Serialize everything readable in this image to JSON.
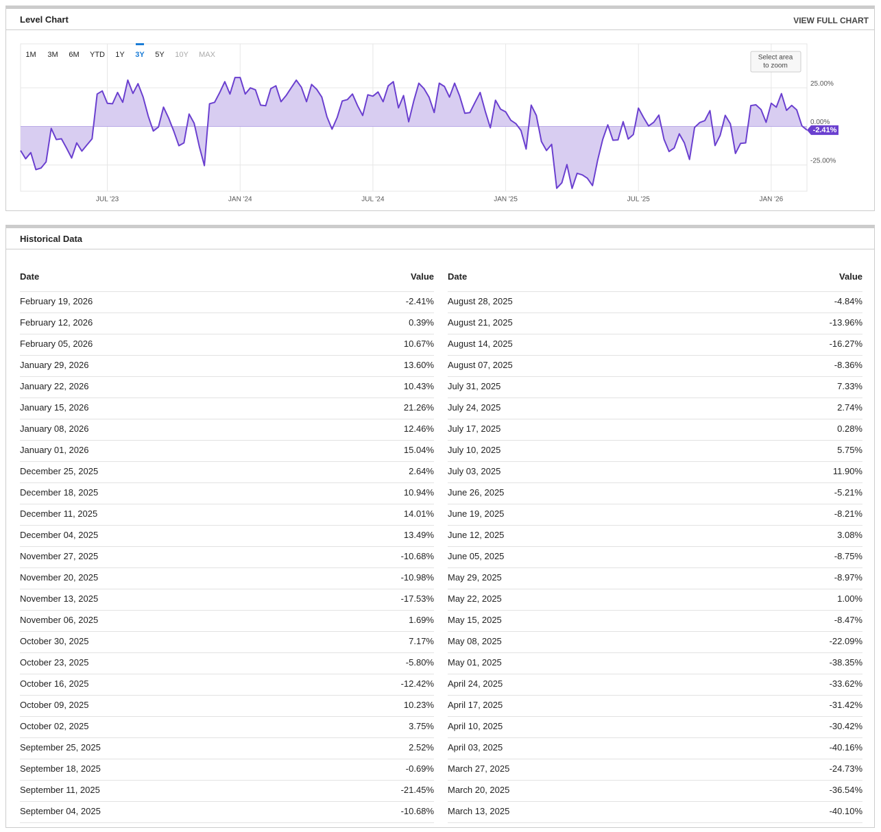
{
  "header": {
    "title": "Level Chart",
    "link": "VIEW FULL CHART"
  },
  "ranges": [
    "1M",
    "3M",
    "6M",
    "YTD",
    "1Y",
    "3Y",
    "5Y",
    "10Y",
    "MAX"
  ],
  "selected_range": "3Y",
  "disabled_ranges": [
    "10Y",
    "MAX"
  ],
  "zoom_hint": [
    "Select area",
    "to zoom"
  ],
  "chart_data": {
    "type": "area",
    "color": "#6a3fcf",
    "fill_color": "#d8cdf1",
    "categories": [
      null,
      null,
      null,
      null,
      null,
      null,
      null,
      null,
      null,
      null,
      null,
      null,
      null,
      null,
      null,
      null,
      null,
      "JUL '23",
      null,
      null,
      null,
      null,
      null,
      null,
      null,
      null,
      null,
      null,
      null,
      null,
      null,
      null,
      null,
      null,
      null,
      null,
      null,
      null,
      null,
      null,
      null,
      null,
      null,
      "JAN '24",
      null,
      null,
      null,
      null,
      null,
      null,
      null,
      null,
      null,
      null,
      null,
      null,
      null,
      null,
      null,
      null,
      null,
      null,
      null,
      null,
      null,
      null,
      null,
      null,
      null,
      "JUL '24",
      null,
      null,
      null,
      null,
      null,
      null,
      null,
      null,
      null,
      null,
      null,
      null,
      null,
      null,
      null,
      null,
      null,
      null,
      null,
      null,
      null,
      null,
      null,
      null,
      null,
      "JAN '25",
      null,
      null,
      null,
      null,
      null,
      null,
      null,
      null,
      null,
      null,
      null,
      null,
      null,
      null,
      null,
      null,
      null,
      null,
      null,
      null,
      null,
      null,
      null,
      null,
      null,
      "JUL '25",
      null,
      null,
      null,
      null,
      null,
      null,
      null,
      null,
      null,
      null,
      null,
      null,
      null,
      null,
      null,
      null,
      null,
      null,
      null,
      null,
      null,
      null,
      null,
      null,
      null,
      "JAN '26",
      null,
      null,
      null,
      null,
      null,
      null,
      null
    ],
    "values": [
      -15.6,
      -21,
      -17,
      -28,
      -27,
      -23,
      -1.3,
      -8.5,
      -8,
      -14,
      -20.5,
      -10.7,
      -16,
      -12,
      -8,
      21,
      23,
      15,
      14.7,
      22,
      15.6,
      30,
      21.4,
      27.7,
      19,
      6.7,
      -3,
      -0.4,
      12.5,
      5.4,
      -3,
      -12.5,
      -10.7,
      8,
      2,
      -13,
      -25.4,
      14.7,
      15.6,
      22,
      29,
      21,
      31.7,
      31.7,
      21,
      25,
      23.7,
      13.8,
      13.4,
      24.5,
      26.3,
      16,
      20,
      25,
      30,
      25.4,
      16,
      27.2,
      24,
      19,
      6.2,
      -1.8,
      5.8,
      16.5,
      17.4,
      21,
      13.4,
      7.1,
      20.5,
      19.6,
      22.3,
      16,
      26.3,
      29,
      12,
      20,
      3,
      16.5,
      28,
      24.5,
      19,
      9,
      28,
      25.9,
      19,
      28,
      19.6,
      8.5,
      9,
      15.6,
      22,
      9.8,
      -0.9,
      17,
      11.2,
      9.4,
      4,
      1.8,
      -2.7,
      -14.7,
      13.8,
      7.1,
      -9.8,
      -15.6,
      -11.6,
      -40.1,
      -36.54,
      -24.73,
      -40.16,
      -30.42,
      -31.42,
      -33.62,
      -38.35,
      -22.09,
      -8.47,
      1.0,
      -8.97,
      -8.75,
      3.08,
      -8.21,
      -5.21,
      11.9,
      5.75,
      0.28,
      2.74,
      7.33,
      -8.36,
      -16.27,
      -13.96,
      -4.84,
      -10.68,
      -21.45,
      -0.69,
      2.52,
      3.75,
      10.23,
      -12.42,
      -5.8,
      7.17,
      1.69,
      -17.53,
      -10.98,
      -10.68,
      13.49,
      14.01,
      10.94,
      2.64,
      15.04,
      12.46,
      21.26,
      10.43,
      13.6,
      10.67,
      0.39,
      -2.41
    ],
    "ylim": [
      -42,
      53.5
    ],
    "yticks": [
      {
        "value": 25,
        "label": "25.00%"
      },
      {
        "value": 0,
        "label": "0.00%"
      },
      {
        "value": -25,
        "label": "-25.00%"
      }
    ],
    "grid": true,
    "annotations": [
      {
        "value": -2.41,
        "label": "-2.41%"
      }
    ]
  },
  "historical": {
    "title": "Historical Data",
    "columns": [
      {
        "headers": [
          "Date",
          "Value"
        ],
        "rows": [
          [
            "February 19, 2026",
            "-2.41%"
          ],
          [
            "February 12, 2026",
            "0.39%"
          ],
          [
            "February 05, 2026",
            "10.67%"
          ],
          [
            "January 29, 2026",
            "13.60%"
          ],
          [
            "January 22, 2026",
            "10.43%"
          ],
          [
            "January 15, 2026",
            "21.26%"
          ],
          [
            "January 08, 2026",
            "12.46%"
          ],
          [
            "January 01, 2026",
            "15.04%"
          ],
          [
            "December 25, 2025",
            "2.64%"
          ],
          [
            "December 18, 2025",
            "10.94%"
          ],
          [
            "December 11, 2025",
            "14.01%"
          ],
          [
            "December 04, 2025",
            "13.49%"
          ],
          [
            "November 27, 2025",
            "-10.68%"
          ],
          [
            "November 20, 2025",
            "-10.98%"
          ],
          [
            "November 13, 2025",
            "-17.53%"
          ],
          [
            "November 06, 2025",
            "1.69%"
          ],
          [
            "October 30, 2025",
            "7.17%"
          ],
          [
            "October 23, 2025",
            "-5.80%"
          ],
          [
            "October 16, 2025",
            "-12.42%"
          ],
          [
            "October 09, 2025",
            "10.23%"
          ],
          [
            "October 02, 2025",
            "3.75%"
          ],
          [
            "September 25, 2025",
            "2.52%"
          ],
          [
            "September 18, 2025",
            "-0.69%"
          ],
          [
            "September 11, 2025",
            "-21.45%"
          ],
          [
            "September 04, 2025",
            "-10.68%"
          ]
        ]
      },
      {
        "headers": [
          "Date",
          "Value"
        ],
        "rows": [
          [
            "August 28, 2025",
            "-4.84%"
          ],
          [
            "August 21, 2025",
            "-13.96%"
          ],
          [
            "August 14, 2025",
            "-16.27%"
          ],
          [
            "August 07, 2025",
            "-8.36%"
          ],
          [
            "July 31, 2025",
            "7.33%"
          ],
          [
            "July 24, 2025",
            "2.74%"
          ],
          [
            "July 17, 2025",
            "0.28%"
          ],
          [
            "July 10, 2025",
            "5.75%"
          ],
          [
            "July 03, 2025",
            "11.90%"
          ],
          [
            "June 26, 2025",
            "-5.21%"
          ],
          [
            "June 19, 2025",
            "-8.21%"
          ],
          [
            "June 12, 2025",
            "3.08%"
          ],
          [
            "June 05, 2025",
            "-8.75%"
          ],
          [
            "May 29, 2025",
            "-8.97%"
          ],
          [
            "May 22, 2025",
            "1.00%"
          ],
          [
            "May 15, 2025",
            "-8.47%"
          ],
          [
            "May 08, 2025",
            "-22.09%"
          ],
          [
            "May 01, 2025",
            "-38.35%"
          ],
          [
            "April 24, 2025",
            "-33.62%"
          ],
          [
            "April 17, 2025",
            "-31.42%"
          ],
          [
            "April 10, 2025",
            "-30.42%"
          ],
          [
            "April 03, 2025",
            "-40.16%"
          ],
          [
            "March 27, 2025",
            "-24.73%"
          ],
          [
            "March 20, 2025",
            "-36.54%"
          ],
          [
            "March 13, 2025",
            "-40.10%"
          ]
        ]
      }
    ]
  }
}
